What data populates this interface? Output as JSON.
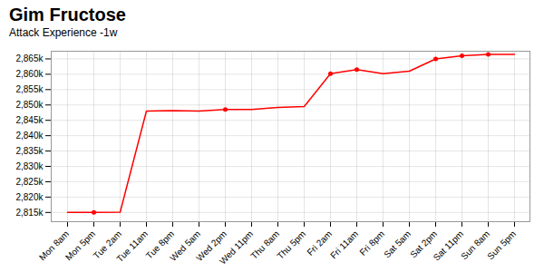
{
  "chart_data": {
    "type": "line",
    "title": "Gim Fructose",
    "subtitle": "Attack Experience -1w",
    "categories": [
      "Mon 8am",
      "Mon 5pm",
      "Tue 2am",
      "Tue 11am",
      "Tue 8pm",
      "Wed 5am",
      "Wed 2pm",
      "Wed 11pm",
      "Thu 8am",
      "Thu 5pm",
      "Fri 2am",
      "Fri 11am",
      "Fri 8pm",
      "Sat 5am",
      "Sat 2pm",
      "Sat 11pm",
      "Sun 8am",
      "Sun 5pm"
    ],
    "series": [
      {
        "type": "line",
        "color": "#ff0000",
        "values": [
          2815000,
          2815000,
          2815100,
          2848000,
          2848200,
          2848000,
          2848500,
          2848500,
          2849200,
          2849500,
          2860200,
          2861500,
          2860200,
          2861000,
          2865000,
          2866000,
          2866500,
          2866500
        ]
      },
      {
        "type": "scatter",
        "color": "#ff0000",
        "marker": "circle",
        "values": [
          null,
          2815000,
          null,
          null,
          null,
          null,
          2848500,
          null,
          null,
          null,
          2860200,
          2861500,
          null,
          null,
          2865000,
          2866000,
          2866500,
          null
        ]
      }
    ],
    "ylim": [
      2812000,
      2867500
    ],
    "yticks": [
      {
        "value": 2815000,
        "label": "2,815k"
      },
      {
        "value": 2820000,
        "label": "2,820k"
      },
      {
        "value": 2825000,
        "label": "2,825k"
      },
      {
        "value": 2830000,
        "label": "2,830k"
      },
      {
        "value": 2835000,
        "label": "2,835k"
      },
      {
        "value": 2840000,
        "label": "2,840k"
      },
      {
        "value": 2845000,
        "label": "2,845k"
      },
      {
        "value": 2850000,
        "label": "2,850k"
      },
      {
        "value": 2855000,
        "label": "2,855k"
      },
      {
        "value": 2860000,
        "label": "2,860k"
      },
      {
        "value": 2865000,
        "label": "2,865k"
      }
    ],
    "grid": true
  }
}
